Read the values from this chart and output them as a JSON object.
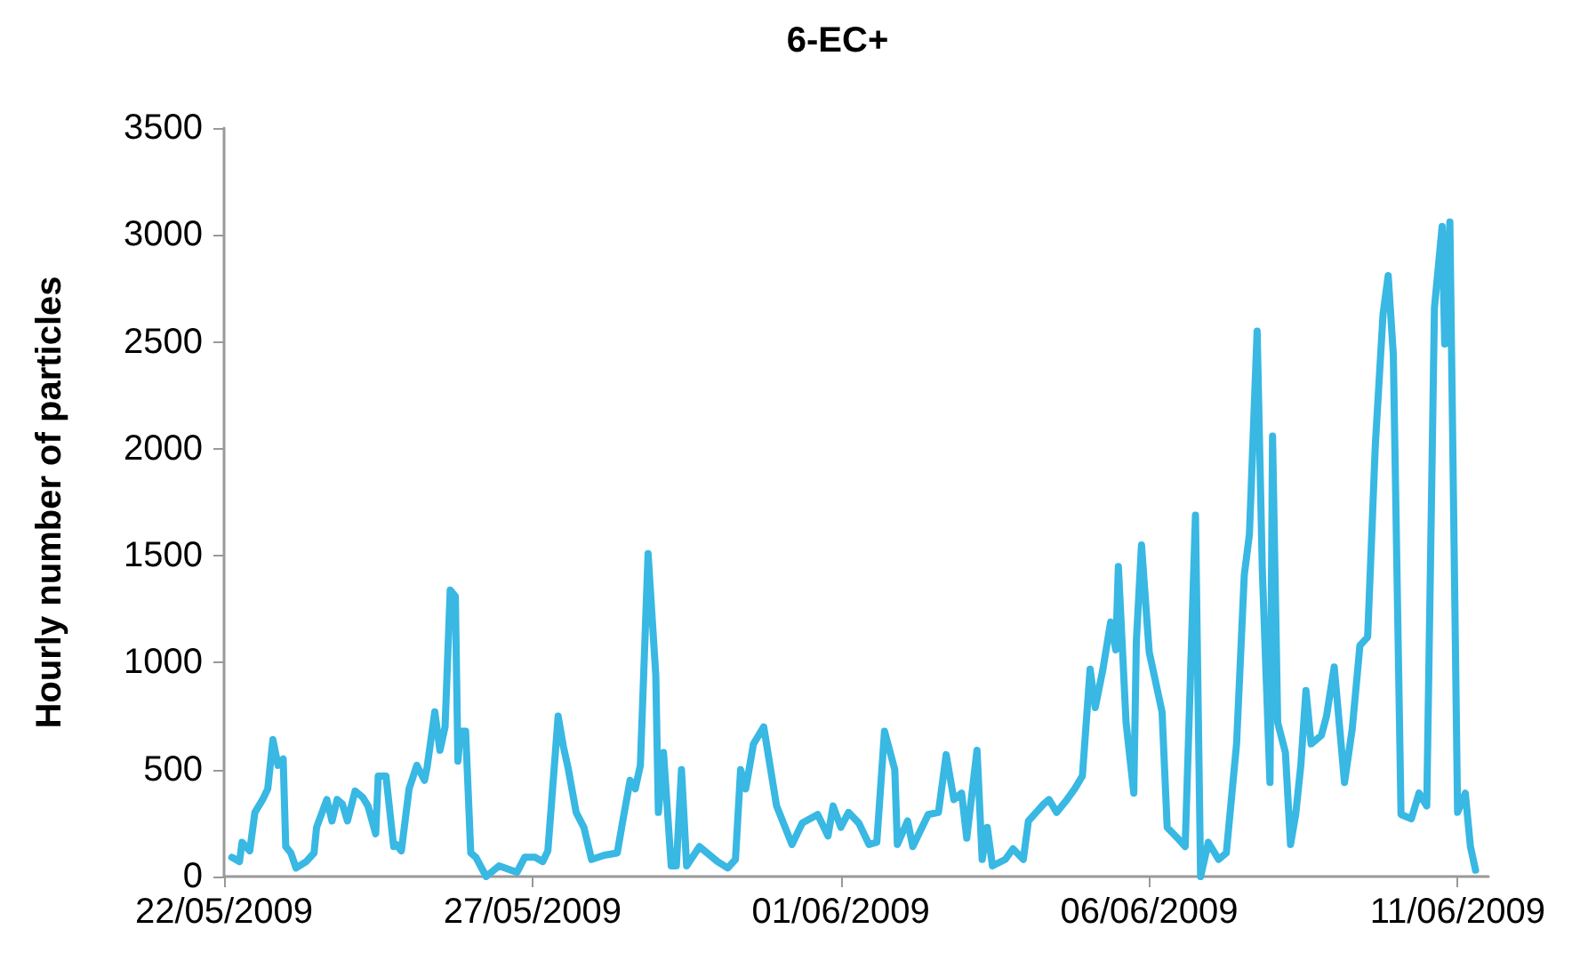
{
  "chart_data": {
    "type": "line",
    "title": "6-EC+",
    "ylabel": "Hourly number of particles",
    "x": [
      "2009-05-22T03:00",
      "2009-05-22T06:00",
      "2009-05-22T07:00",
      "2009-05-22T10:00",
      "2009-05-22T12:00",
      "2009-05-22T15:00",
      "2009-05-22T17:00",
      "2009-05-22T19:00",
      "2009-05-22T21:00",
      "2009-05-22T23:00",
      "2009-05-23T00:00",
      "2009-05-23T02:00",
      "2009-05-23T04:00",
      "2009-05-23T08:00",
      "2009-05-23T11:00",
      "2009-05-23T12:00",
      "2009-05-23T16:00",
      "2009-05-23T18:00",
      "2009-05-23T20:00",
      "2009-05-23T22:00",
      "2009-05-24T00:00",
      "2009-05-24T03:00",
      "2009-05-24T06:00",
      "2009-05-24T08:00",
      "2009-05-24T11:00",
      "2009-05-24T12:00",
      "2009-05-24T15:00",
      "2009-05-24T18:00",
      "2009-05-24T19:00",
      "2009-05-24T21:00",
      "2009-05-25T00:00",
      "2009-05-25T03:00",
      "2009-05-25T06:00",
      "2009-05-25T07:00",
      "2009-05-25T10:00",
      "2009-05-25T12:00",
      "2009-05-25T14:00",
      "2009-05-25T16:00",
      "2009-05-25T18:00",
      "2009-05-25T19:00",
      "2009-05-25T20:00",
      "2009-05-25T22:00",
      "2009-05-26T00:00",
      "2009-05-26T02:00",
      "2009-05-26T06:00",
      "2009-05-26T11:00",
      "2009-05-26T18:00",
      "2009-05-26T21:00",
      "2009-05-27T01:00",
      "2009-05-27T04:00",
      "2009-05-27T06:00",
      "2009-05-27T10:00",
      "2009-05-27T12:00",
      "2009-05-27T14:00",
      "2009-05-27T17:00",
      "2009-05-27T20:00",
      "2009-05-27T23:00",
      "2009-05-28T04:00",
      "2009-05-28T09:00",
      "2009-05-28T11:00",
      "2009-05-28T14:00",
      "2009-05-28T16:00",
      "2009-05-28T18:00",
      "2009-05-28T21:00",
      "2009-05-29T00:00",
      "2009-05-29T01:00",
      "2009-05-29T03:00",
      "2009-05-29T06:00",
      "2009-05-29T08:00",
      "2009-05-29T10:00",
      "2009-05-29T12:00",
      "2009-05-29T17:00",
      "2009-05-30T00:00",
      "2009-05-30T04:00",
      "2009-05-30T07:00",
      "2009-05-30T09:00",
      "2009-05-30T11:00",
      "2009-05-30T14:00",
      "2009-05-30T18:00",
      "2009-05-30T23:00",
      "2009-05-31T05:00",
      "2009-05-31T09:00",
      "2009-05-31T15:00",
      "2009-05-31T19:00",
      "2009-05-31T21:00",
      "2009-06-01T00:00",
      "2009-06-01T03:00",
      "2009-06-01T07:00",
      "2009-06-01T11:00",
      "2009-06-01T14:00",
      "2009-06-01T17:00",
      "2009-06-01T21:00",
      "2009-06-01T22:00",
      "2009-06-02T02:00",
      "2009-06-02T04:00",
      "2009-06-02T10:00",
      "2009-06-02T14:00",
      "2009-06-02T17:00",
      "2009-06-02T20:00",
      "2009-06-02T23:00",
      "2009-06-03T01:00",
      "2009-06-03T05:00",
      "2009-06-03T07:00",
      "2009-06-03T09:00",
      "2009-06-03T11:00",
      "2009-06-03T16:00",
      "2009-06-03T19:00",
      "2009-06-03T23:00",
      "2009-06-04T01:00",
      "2009-06-04T04:00",
      "2009-06-04T07:00",
      "2009-06-04T09:00",
      "2009-06-04T12:00",
      "2009-06-04T16:00",
      "2009-06-04T19:00",
      "2009-06-04T22:00",
      "2009-06-05T01:00",
      "2009-06-05T03:00",
      "2009-06-05T06:00",
      "2009-06-05T09:00",
      "2009-06-05T11:00",
      "2009-06-05T12:00",
      "2009-06-05T15:00",
      "2009-06-05T18:00",
      "2009-06-05T19:00",
      "2009-06-05T21:00",
      "2009-06-06T00:00",
      "2009-06-06T05:00",
      "2009-06-06T07:00",
      "2009-06-06T11:00",
      "2009-06-06T14:00",
      "2009-06-06T18:00",
      "2009-06-06T20:00",
      "2009-06-06T23:00",
      "2009-06-07T03:00",
      "2009-06-07T06:00",
      "2009-06-07T10:00",
      "2009-06-07T13:00",
      "2009-06-07T15:00",
      "2009-06-07T18:00",
      "2009-06-07T20:00",
      "2009-06-07T23:00",
      "2009-06-08T00:00",
      "2009-06-08T02:00",
      "2009-06-08T05:00",
      "2009-06-08T07:00",
      "2009-06-08T09:00",
      "2009-06-08T11:00",
      "2009-06-08T13:00",
      "2009-06-08T15:00",
      "2009-06-08T19:00",
      "2009-06-08T21:00",
      "2009-06-09T00:00",
      "2009-06-09T04:00",
      "2009-06-09T07:00",
      "2009-06-09T10:00",
      "2009-06-09T13:00",
      "2009-06-09T16:00",
      "2009-06-09T19:00",
      "2009-06-09T21:00",
      "2009-06-09T23:00",
      "2009-06-10T02:00",
      "2009-06-10T06:00",
      "2009-06-10T09:00",
      "2009-06-10T12:00",
      "2009-06-10T15:00",
      "2009-06-10T18:00",
      "2009-06-10T19:00",
      "2009-06-10T21:00",
      "2009-06-11T00:00",
      "2009-06-11T03:00",
      "2009-06-11T05:00",
      "2009-06-11T07:00"
    ],
    "series": [
      {
        "color": "#38b8e3",
        "values": [
          90,
          70,
          160,
          120,
          300,
          360,
          410,
          640,
          520,
          550,
          140,
          110,
          40,
          70,
          110,
          230,
          360,
          260,
          360,
          340,
          260,
          400,
          370,
          330,
          200,
          470,
          470,
          140,
          150,
          120,
          410,
          520,
          450,
          510,
          770,
          590,
          700,
          1340,
          1310,
          540,
          680,
          680,
          110,
          90,
          0,
          50,
          20,
          90,
          90,
          70,
          120,
          750,
          610,
          500,
          300,
          230,
          80,
          100,
          110,
          250,
          450,
          410,
          520,
          1510,
          940,
          300,
          580,
          50,
          50,
          500,
          50,
          140,
          70,
          40,
          80,
          500,
          410,
          620,
          700,
          330,
          150,
          250,
          290,
          190,
          330,
          230,
          300,
          250,
          150,
          160,
          680,
          500,
          150,
          260,
          140,
          290,
          300,
          570,
          360,
          390,
          180,
          590,
          80,
          230,
          50,
          80,
          130,
          80,
          260,
          300,
          340,
          360,
          300,
          360,
          410,
          470,
          970,
          790,
          970,
          1190,
          1060,
          1450,
          720,
          390,
          1100,
          1550,
          1050,
          770,
          230,
          180,
          140,
          1690,
          0,
          160,
          80,
          110,
          620,
          1410,
          1600,
          2550,
          1440,
          440,
          2060,
          720,
          580,
          150,
          290,
          520,
          870,
          620,
          660,
          750,
          980,
          440,
          690,
          1080,
          1120,
          2020,
          2630,
          2810,
          2440,
          290,
          270,
          390,
          330,
          2660,
          3040,
          2490,
          3060,
          300,
          390,
          140,
          30
        ]
      }
    ],
    "xlim": [
      "2009-05-22",
      "2009-06-11T12:00"
    ],
    "xticks": [
      {
        "value": "2009-05-22",
        "label": "22/05/2009"
      },
      {
        "value": "2009-05-27",
        "label": "27/05/2009"
      },
      {
        "value": "2009-06-01",
        "label": "01/06/2009"
      },
      {
        "value": "2009-06-06",
        "label": "06/06/2009"
      },
      {
        "value": "2009-06-11",
        "label": "11/06/2009"
      }
    ],
    "ylim": [
      0,
      3500
    ],
    "yticks": [
      0,
      500,
      1000,
      1500,
      2000,
      2500,
      3000,
      3500
    ],
    "grid": false,
    "marker": "none",
    "line_style": "solid"
  }
}
